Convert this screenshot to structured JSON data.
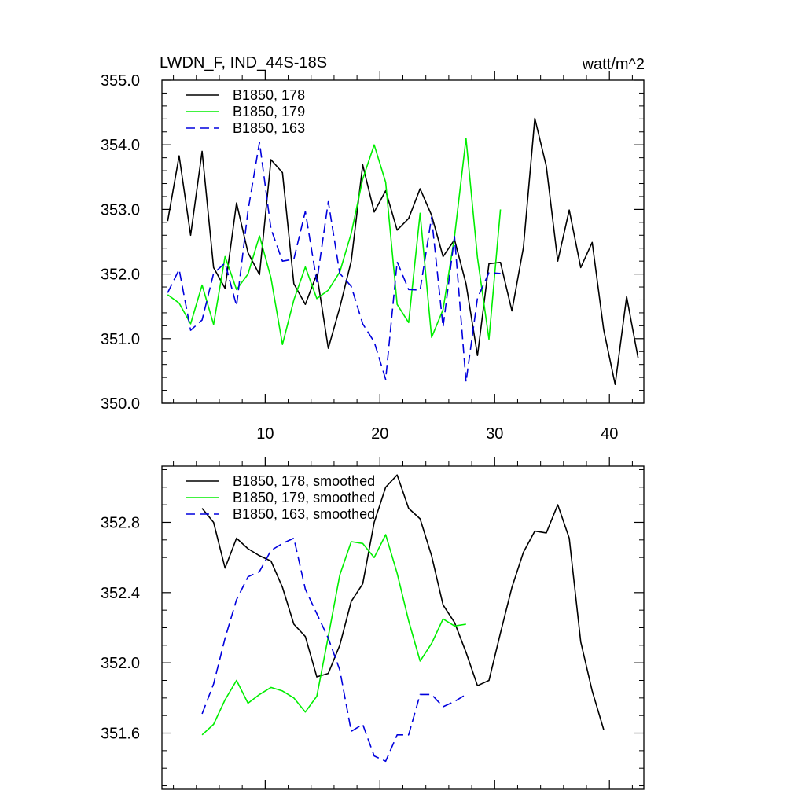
{
  "chart_data": [
    {
      "type": "line",
      "title": "LWDN_F, IND_44S-18S",
      "units": "watt/m^2",
      "xlim": [
        1.0,
        43.0
      ],
      "ylim": [
        350.0,
        355.0
      ],
      "x_ticks": [
        10,
        20,
        30,
        40
      ],
      "x_tick_labels": [
        "10",
        "20",
        "30",
        "40"
      ],
      "y_ticks": [
        350.0,
        351.0,
        352.0,
        353.0,
        354.0,
        355.0
      ],
      "y_tick_labels": [
        "350.0",
        "351.0",
        "352.0",
        "353.0",
        "354.0",
        "355.0"
      ],
      "legend_position": "top-left",
      "series": [
        {
          "name": "B1850, 178",
          "color": "#000000",
          "dash": "solid",
          "x": [
            1.5,
            2.5,
            3.5,
            4.5,
            5.5,
            6.5,
            7.5,
            8.5,
            9.5,
            10.5,
            11.5,
            12.5,
            13.5,
            14.5,
            15.5,
            16.5,
            17.5,
            18.5,
            19.5,
            20.5,
            21.5,
            22.5,
            23.5,
            24.5,
            25.5,
            26.5,
            27.5,
            28.5,
            29.5,
            30.5,
            31.5,
            32.5,
            33.5,
            34.5,
            35.5,
            36.5,
            37.5,
            38.5,
            39.5,
            40.5,
            41.5,
            42.5
          ],
          "y": [
            352.82,
            353.83,
            352.6,
            353.9,
            352.1,
            351.78,
            353.1,
            352.33,
            351.99,
            353.77,
            353.57,
            351.85,
            351.53,
            352.0,
            350.85,
            351.48,
            352.2,
            353.69,
            352.96,
            353.29,
            352.68,
            352.86,
            353.32,
            352.91,
            352.27,
            352.53,
            351.85,
            350.74,
            352.16,
            352.18,
            351.43,
            352.41,
            354.41,
            353.67,
            352.2,
            352.99,
            352.1,
            352.49,
            351.14,
            350.29,
            351.65,
            350.7
          ]
        },
        {
          "name": "B1850, 179",
          "color": "#00ee00",
          "dash": "solid",
          "x": [
            1.5,
            2.5,
            3.5,
            4.5,
            5.5,
            6.5,
            7.5,
            8.5,
            9.5,
            10.5,
            11.5,
            12.5,
            13.5,
            14.5,
            15.5,
            16.5,
            17.5,
            18.5,
            19.5,
            20.5,
            21.5,
            22.5,
            23.5,
            24.5,
            25.5,
            26.5,
            27.5,
            28.5,
            29.5,
            30.5
          ],
          "y": [
            351.68,
            351.55,
            351.23,
            351.83,
            351.22,
            352.27,
            351.76,
            352.0,
            352.59,
            351.94,
            350.91,
            351.6,
            352.11,
            351.62,
            351.75,
            352.03,
            352.63,
            353.47,
            354.0,
            353.42,
            351.53,
            351.25,
            352.94,
            351.02,
            351.45,
            352.58,
            354.1,
            352.25,
            350.99,
            353.0
          ]
        },
        {
          "name": "B1850, 163",
          "color": "#0000dd",
          "dash": "dashed",
          "x": [
            1.5,
            2.5,
            3.5,
            4.5,
            5.5,
            6.5,
            7.5,
            8.5,
            9.5,
            10.5,
            11.5,
            12.5,
            13.5,
            14.5,
            15.5,
            16.5,
            17.5,
            18.5,
            19.5,
            20.5,
            21.5,
            22.5,
            23.5,
            24.5,
            25.5,
            26.5,
            27.5,
            28.5,
            29.5,
            30.5
          ],
          "y": [
            351.71,
            352.07,
            351.13,
            351.29,
            352.01,
            352.17,
            351.51,
            352.98,
            354.04,
            352.7,
            352.2,
            352.23,
            352.97,
            351.88,
            353.12,
            352.01,
            351.81,
            351.23,
            350.95,
            350.37,
            352.19,
            351.76,
            351.75,
            352.88,
            351.18,
            352.58,
            350.33,
            351.63,
            352.02,
            352.01
          ]
        }
      ]
    },
    {
      "type": "line",
      "title": "",
      "xlim": [
        1.0,
        43.0
      ],
      "ylim": [
        351.28,
        353.12
      ],
      "x_ticks": [
        10,
        20,
        30,
        40
      ],
      "x_tick_labels": [],
      "y_ticks": [
        351.6,
        352.0,
        352.4,
        352.8
      ],
      "y_tick_labels": [
        "351.6",
        "352.0",
        "352.4",
        "352.8"
      ],
      "legend_position": "top-left",
      "series": [
        {
          "name": "B1850, 178, smoothed",
          "color": "#000000",
          "dash": "solid",
          "x": [
            4.5,
            5.5,
            6.5,
            7.5,
            8.5,
            9.5,
            10.5,
            11.5,
            12.5,
            13.5,
            14.5,
            15.5,
            16.5,
            17.5,
            18.5,
            19.5,
            20.5,
            21.5,
            22.5,
            23.5,
            24.5,
            25.5,
            26.5,
            27.5,
            28.5,
            29.5,
            30.5,
            31.5,
            32.5,
            33.5,
            34.5,
            35.5,
            36.5,
            37.5,
            38.5,
            39.5
          ],
          "y": [
            352.88,
            352.8,
            352.54,
            352.71,
            352.65,
            352.61,
            352.58,
            352.43,
            352.22,
            352.15,
            351.92,
            351.94,
            352.1,
            352.35,
            352.45,
            352.8,
            353.0,
            353.07,
            352.88,
            352.82,
            352.61,
            352.33,
            352.23,
            352.06,
            351.87,
            351.9,
            352.17,
            352.43,
            352.63,
            352.75,
            352.74,
            352.9,
            352.71,
            352.12,
            351.84,
            351.62
          ]
        },
        {
          "name": "B1850, 179, smoothed",
          "color": "#00ee00",
          "dash": "solid",
          "x": [
            4.5,
            5.5,
            6.5,
            7.5,
            8.5,
            9.5,
            10.5,
            11.5,
            12.5,
            13.5,
            14.5,
            15.5,
            16.5,
            17.5,
            18.5,
            19.5,
            20.5,
            21.5,
            22.5,
            23.5,
            24.5,
            25.5,
            26.5,
            27.5
          ],
          "y": [
            351.59,
            351.65,
            351.79,
            351.9,
            351.77,
            351.82,
            351.86,
            351.84,
            351.8,
            351.72,
            351.81,
            352.15,
            352.5,
            352.69,
            352.68,
            352.6,
            352.73,
            352.51,
            352.24,
            352.01,
            352.11,
            352.25,
            352.21,
            352.22
          ]
        },
        {
          "name": "B1850, 163, smoothed",
          "color": "#0000dd",
          "dash": "dashed",
          "x": [
            4.5,
            5.5,
            6.5,
            7.5,
            8.5,
            9.5,
            10.5,
            11.5,
            12.5,
            13.5,
            14.5,
            15.5,
            16.5,
            17.5,
            18.5,
            19.5,
            20.5,
            21.5,
            22.5,
            23.5,
            24.5,
            25.5,
            26.5,
            27.5
          ],
          "y": [
            351.71,
            351.88,
            352.14,
            352.36,
            352.49,
            352.52,
            352.64,
            352.68,
            352.71,
            352.42,
            352.28,
            352.14,
            351.96,
            351.61,
            351.65,
            351.47,
            351.44,
            351.59,
            351.59,
            351.82,
            351.82,
            351.75,
            351.78,
            351.82
          ]
        }
      ]
    }
  ]
}
